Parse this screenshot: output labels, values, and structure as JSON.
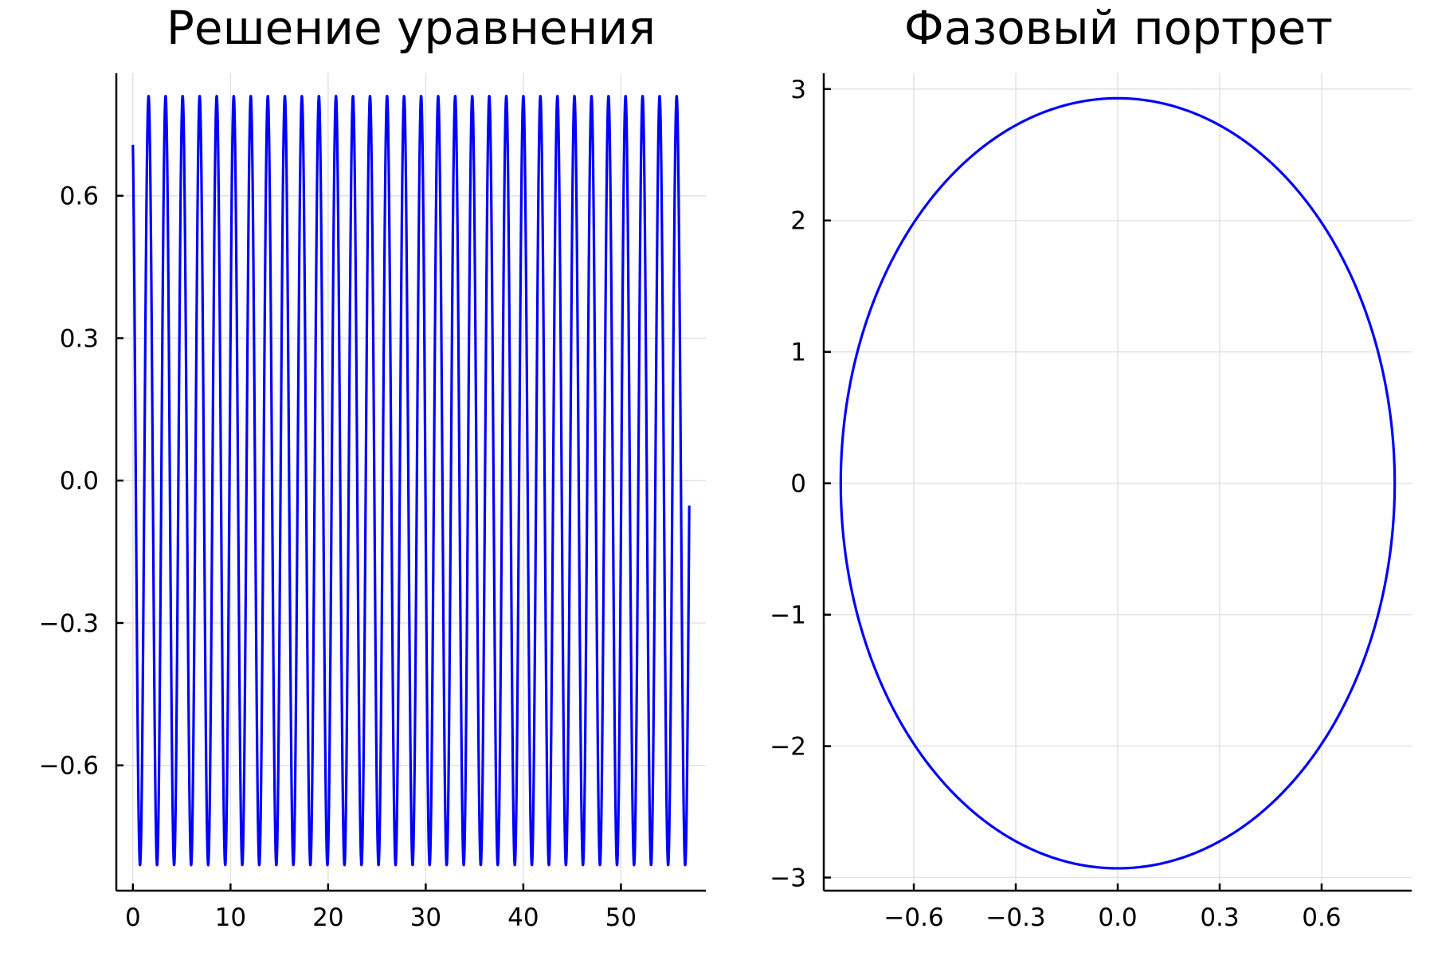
{
  "chart_data": [
    {
      "type": "line",
      "title": "Решение уравнения",
      "xlabel": "",
      "ylabel": "",
      "xlim": [
        -1.7,
        58.7
      ],
      "ylim": [
        -0.864,
        0.858
      ],
      "xticks": [
        0,
        10,
        20,
        30,
        40,
        50
      ],
      "xtick_labels": [
        "0",
        "10",
        "20",
        "30",
        "40",
        "50"
      ],
      "yticks": [
        0.6,
        0.3,
        0.0,
        -0.3,
        -0.6
      ],
      "ytick_labels": [
        "0.6",
        "0.3",
        "0.0",
        "−0.3",
        "−0.6"
      ],
      "grid": true,
      "legend": "none",
      "axis_frame": "left-bottom",
      "series": [
        {
          "color": "#0000ff",
          "function": "y = A*sin(omega*t + phi)",
          "amplitude": 0.81,
          "omega": 3.6,
          "phase": 2.08,
          "t_range": [
            0,
            57
          ]
        }
      ]
    },
    {
      "type": "line",
      "title": "Фазовый портрет",
      "xlabel": "",
      "ylabel": "",
      "xlim": [
        -0.865,
        0.865
      ],
      "ylim": [
        -3.1,
        3.12
      ],
      "xticks": [
        -0.6,
        -0.3,
        0.0,
        0.3,
        0.6
      ],
      "xtick_labels": [
        "−0.6",
        "−0.3",
        "0.0",
        "0.3",
        "0.6"
      ],
      "yticks": [
        3,
        2,
        1,
        0,
        -1,
        -2,
        -3
      ],
      "ytick_labels": [
        "3",
        "2",
        "1",
        "0",
        "−1",
        "−2",
        "−3"
      ],
      "grid": true,
      "legend": "none",
      "axis_frame": "left-bottom",
      "series": [
        {
          "color": "#0000ff",
          "shape": "ellipse",
          "center": [
            0,
            0
          ],
          "x_radius": 0.815,
          "y_radius": 2.93
        }
      ]
    }
  ]
}
